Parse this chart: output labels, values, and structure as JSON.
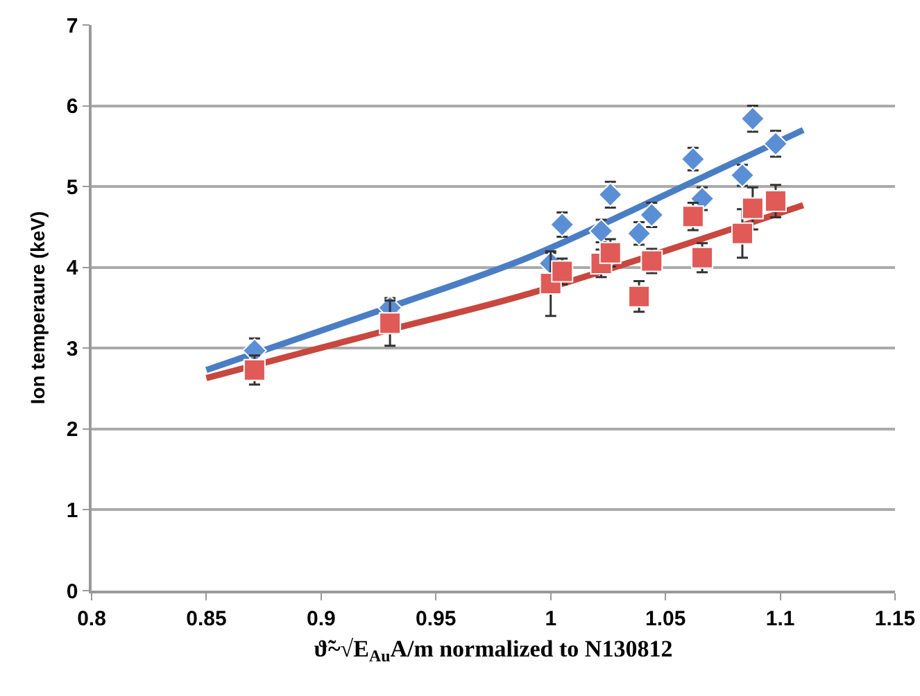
{
  "chart_data": {
    "type": "scatter",
    "xlabel": "ϑ̃~√E$_{Au}$A/m normalized to N130812",
    "ylabel": "Ion temperaure (keV)",
    "xlim": [
      0.8,
      1.15
    ],
    "xticks": [
      0.8,
      0.85,
      0.9,
      0.95,
      1,
      1.05,
      1.1,
      1.15
    ],
    "ylim": [
      0,
      7
    ],
    "yticks": [
      0,
      1,
      2,
      3,
      4,
      5,
      6,
      7
    ],
    "grid": "y",
    "series": [
      {
        "marker": "diamond",
        "color": "#5a8fd6",
        "x": [
          0.871,
          0.93,
          1.0,
          1.005,
          1.022,
          1.026,
          1.0385,
          1.044,
          1.062,
          1.066,
          1.0835,
          1.088,
          1.098
        ],
        "values": [
          2.97,
          3.5,
          4.05,
          4.53,
          4.45,
          4.9,
          4.42,
          4.65,
          5.34,
          4.85,
          5.14,
          5.84,
          5.53
        ],
        "errors": [
          0.15,
          0.12,
          0.13,
          0.15,
          0.14,
          0.16,
          0.14,
          0.15,
          0.14,
          0.14,
          0.13,
          0.16,
          0.16
        ]
      },
      {
        "marker": "square",
        "color": "#e05a57",
        "x": [
          0.871,
          0.93,
          1.0,
          1.005,
          1.022,
          1.026,
          1.0385,
          1.044,
          1.062,
          1.066,
          1.0835,
          1.088,
          1.098
        ],
        "values": [
          2.73,
          3.31,
          3.8,
          3.95,
          4.05,
          4.18,
          3.64,
          4.08,
          4.63,
          4.12,
          4.42,
          4.73,
          4.82
        ],
        "errors": [
          0.18,
          0.28,
          0.4,
          0.16,
          0.17,
          0.17,
          0.19,
          0.15,
          0.17,
          0.18,
          0.3,
          0.26,
          0.2
        ]
      },
      {
        "type": "line",
        "marker": "none",
        "color": "#4a7ec4",
        "x": [
          0.85,
          0.93,
          0.99,
          1.05,
          1.11
        ],
        "values": [
          2.73,
          3.51,
          4.12,
          4.9,
          5.7
        ]
      },
      {
        "type": "line",
        "marker": "none",
        "color": "#c8473f",
        "x": [
          0.85,
          0.93,
          0.99,
          1.11
        ],
        "values": [
          2.63,
          3.23,
          3.67,
          4.77
        ]
      }
    ]
  }
}
